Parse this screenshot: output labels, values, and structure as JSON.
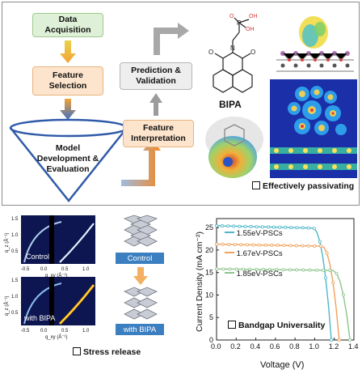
{
  "workflow": {
    "data_acquisition": "Data Acquisition",
    "feature_selection": "Feature Selection",
    "model_development": "Model Development & Evaluation",
    "feature_interpretation": "Feature Interpretation",
    "prediction_validation": "Prediction & Validation"
  },
  "molecule": {
    "name": "BIPA",
    "oh1": "OH",
    "oh2": "OH",
    "p": "P",
    "o_top": "O",
    "o_left": "O",
    "o_right": "O",
    "n": "N"
  },
  "passivation_caption": "Effectively passivating",
  "giwaxs": {
    "control_label": "Control",
    "bipa_label": "with BIPA",
    "y_axis": "q_z (Å⁻¹)",
    "x_axis": "q_xy (Å⁻¹)",
    "x_ticks": [
      "-0.5",
      "0.0",
      "0.5",
      "1.0"
    ],
    "y_ticks": [
      "0.5",
      "1.0",
      "1.5"
    ]
  },
  "structures": {
    "control_label": "Control",
    "bipa_label": "with BIPA"
  },
  "stress_caption": "Stress release",
  "bandgap_caption": "Bandgap Universality",
  "colors": {
    "teal": "#4fb7c8",
    "orange": "#f0a25a",
    "green": "#8cc58c",
    "box_green": "#dff0d8",
    "box_peach": "#fde4cc",
    "box_grey": "#eeeeee",
    "label_blue": "#3c7fc0"
  },
  "chart_data": {
    "type": "line",
    "xlabel": "Voltage (V)",
    "ylabel": "Current Density (mA cm⁻²)",
    "xlim": [
      0.0,
      1.4
    ],
    "ylim": [
      0,
      27
    ],
    "x_ticks": [
      "0.0",
      "0.2",
      "0.4",
      "0.6",
      "0.8",
      "1.0",
      "1.2",
      "1.4"
    ],
    "y_ticks": [
      "0",
      "5",
      "10",
      "15",
      "20",
      "25"
    ],
    "series": [
      {
        "name": "1.55eV-PSCs",
        "color": "#4fb7c8",
        "jsc": 25.4,
        "voc": 1.17,
        "knee": 0.98
      },
      {
        "name": "1.67eV-PSCs",
        "color": "#f0a25a",
        "jsc": 21.3,
        "voc": 1.25,
        "knee": 1.07
      },
      {
        "name": "1.85eV-PSCs",
        "color": "#8cc58c",
        "jsc": 15.8,
        "voc": 1.36,
        "knee": 1.18
      }
    ]
  }
}
